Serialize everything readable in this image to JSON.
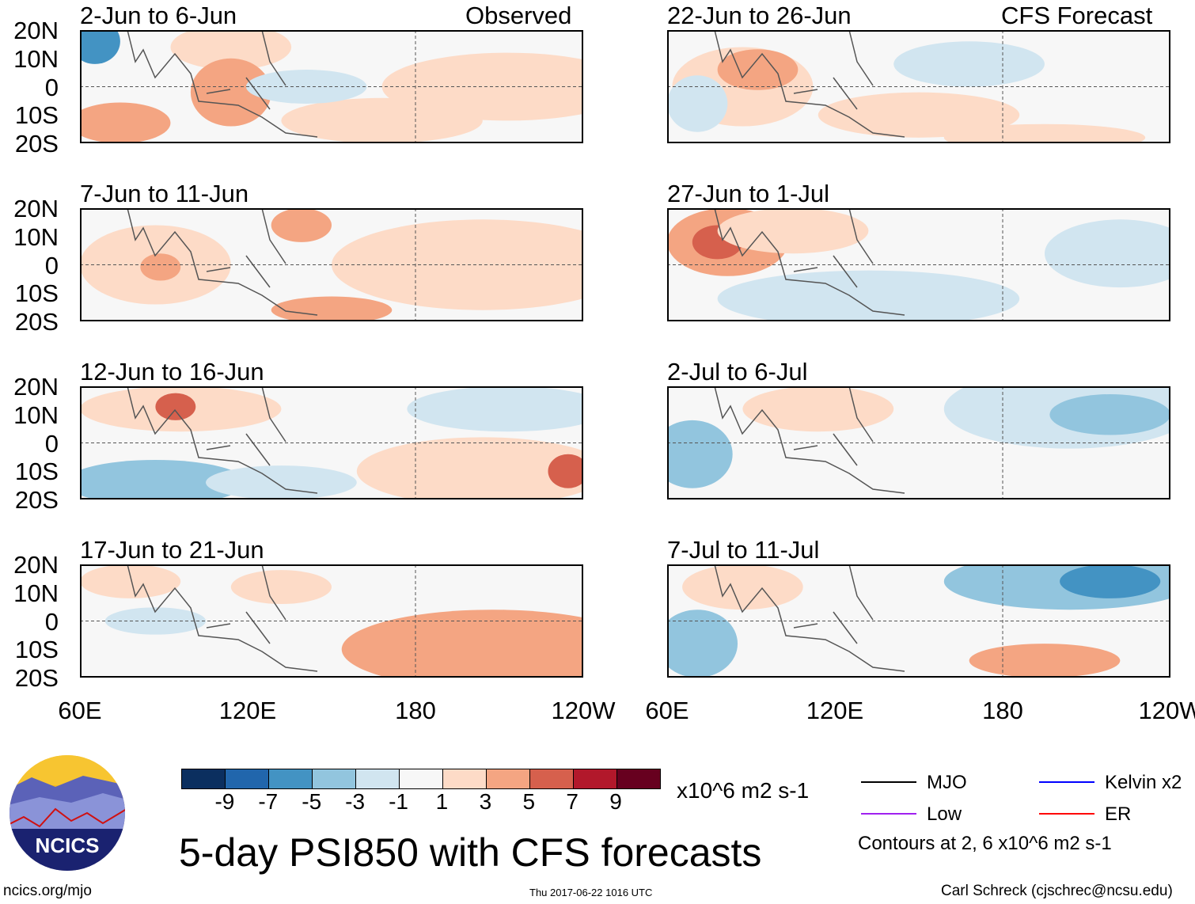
{
  "labels": {
    "observed": "Observed",
    "forecast": "CFS Forecast"
  },
  "panels": [
    {
      "title": "2-Jun to 6-Jun",
      "column": "left"
    },
    {
      "title": "7-Jun to 11-Jun",
      "column": "left"
    },
    {
      "title": "12-Jun to 16-Jun",
      "column": "left"
    },
    {
      "title": "17-Jun to 21-Jun",
      "column": "left"
    },
    {
      "title": "22-Jun to 26-Jun",
      "column": "right"
    },
    {
      "title": "27-Jun to 1-Jul",
      "column": "right"
    },
    {
      "title": "2-Jul to 6-Jul",
      "column": "right"
    },
    {
      "title": "7-Jul to 11-Jul",
      "column": "right"
    }
  ],
  "lat_ticks": [
    "20N",
    "10N",
    "0",
    "10S",
    "20S"
  ],
  "lon_ticks": [
    "60E",
    "120E",
    "180",
    "120W"
  ],
  "colorbar": {
    "colors": [
      "#0b2f5f",
      "#2166ac",
      "#4393c3",
      "#92c5de",
      "#d1e5f0",
      "#f7f7f7",
      "#fddbc7",
      "#f4a582",
      "#d6604d",
      "#b2182b",
      "#67001f"
    ],
    "labels": [
      "-9",
      "-7",
      "-5",
      "-3",
      "-1",
      "1",
      "3",
      "5",
      "7",
      "9"
    ],
    "units": "x10^6 m2 s-1"
  },
  "legend": {
    "items": [
      {
        "label": "MJO",
        "color": "#000000"
      },
      {
        "label": "Low",
        "color": "#a020f0"
      },
      {
        "label": "Kelvin x2",
        "color": "#0000ff"
      },
      {
        "label": "ER",
        "color": "#ff0000"
      }
    ],
    "note": "Contours at 2, 6 x10^6 m2 s-1"
  },
  "title": "5-day PSI850 with CFS forecasts",
  "logo_text": "NCICS",
  "footer": {
    "url": "ncics.org/mjo",
    "timestamp": "Thu 2017-06-22 1016 UTC",
    "credit": "Carl Schreck (cjschrec@ncsu.edu)"
  }
}
